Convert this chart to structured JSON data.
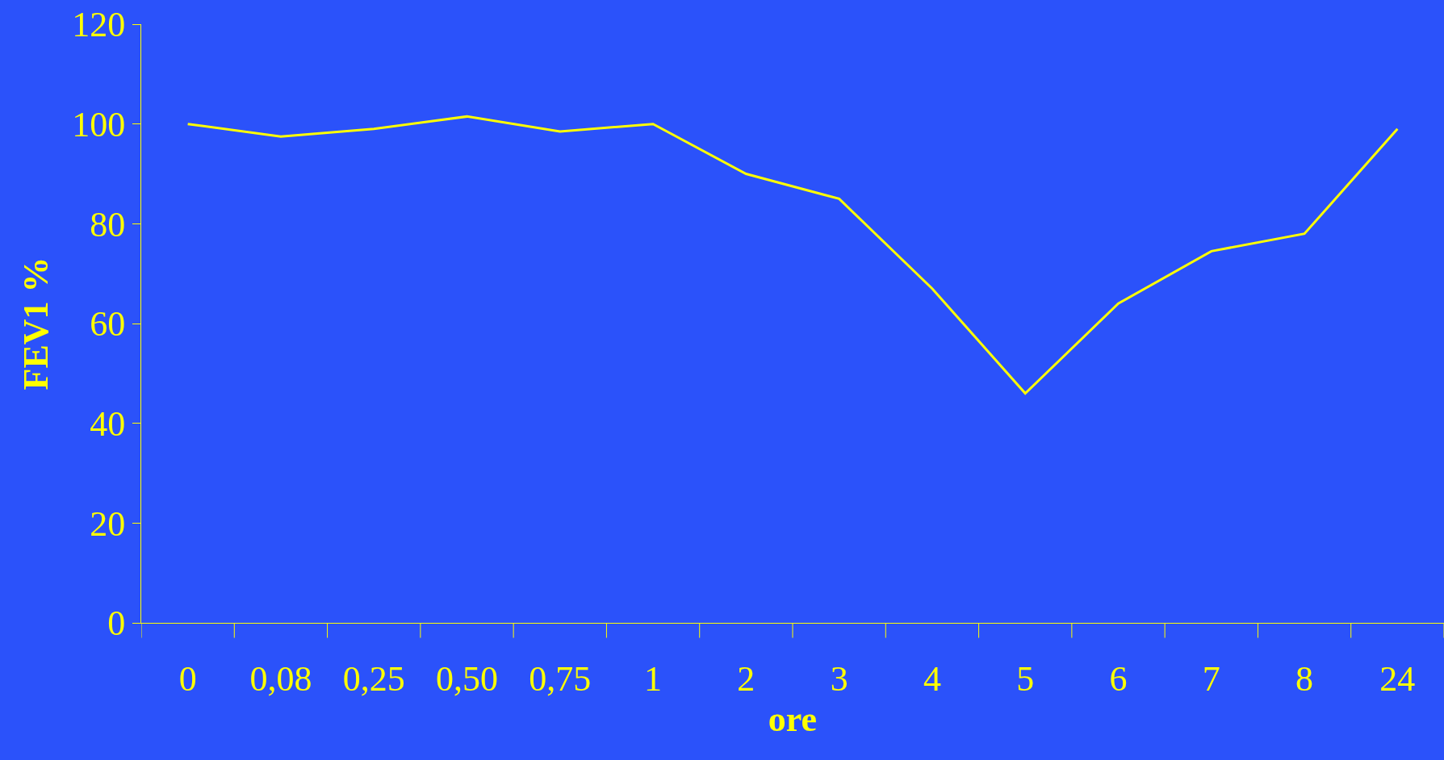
{
  "chart_data": {
    "type": "line",
    "xlabel": "ore",
    "ylabel": "FEV1 %",
    "categories": [
      "0",
      "0,08",
      "0,25",
      "0,50",
      "0,75",
      "1",
      "2",
      "3",
      "4",
      "5",
      "6",
      "7",
      "8",
      "24"
    ],
    "series": [
      {
        "color": "#ffff00",
        "values": [
          100,
          97.5,
          99,
          101.5,
          98.5,
          100,
          90,
          85,
          67,
          46,
          64,
          74.5,
          78,
          99
        ]
      }
    ],
    "ylim": [
      0,
      120
    ],
    "yticks": [
      0,
      20,
      40,
      60,
      80,
      100,
      120
    ],
    "marker": "none",
    "line_style": "solid"
  }
}
